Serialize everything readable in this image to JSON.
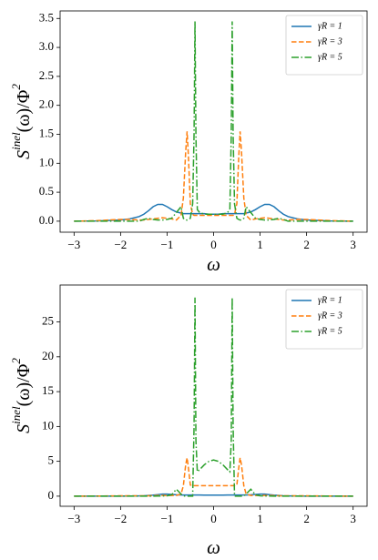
{
  "chart_data": [
    {
      "type": "line",
      "xlabel": "ω",
      "ylabel": [
        "S",
        "inel",
        "(ω)/Φ",
        "2"
      ],
      "xlim": [
        -3.3,
        3.3
      ],
      "ylim": [
        -0.19,
        3.63
      ],
      "xticks": [
        {
          "value": -3,
          "label": "−3"
        },
        {
          "value": -2,
          "label": "−2"
        },
        {
          "value": -1,
          "label": "−1"
        },
        0,
        1,
        2,
        3
      ],
      "yticks": [
        {
          "value": 0,
          "label": "0.0"
        },
        {
          "value": 0.5,
          "label": "0.5"
        },
        {
          "value": 1,
          "label": "1.0"
        },
        {
          "value": 1.5,
          "label": "1.5"
        },
        {
          "value": 2,
          "label": "2.0"
        },
        {
          "value": 2.5,
          "label": "2.5"
        },
        {
          "value": 3,
          "label": "3.0"
        },
        {
          "value": 3.5,
          "label": "3.5"
        }
      ],
      "legend": "upper right",
      "x": [
        -3,
        -2.5,
        -2,
        -1.8,
        -1.6,
        -1.5,
        -1.4,
        -1.3,
        -1.2,
        -1.1,
        -1,
        -0.9,
        -0.8,
        -0.7,
        -0.65,
        -0.6,
        -0.57,
        -0.54,
        -0.5,
        -0.45,
        -0.42,
        -0.4,
        -0.38,
        -0.35,
        -0.3,
        -0.2,
        -0.1,
        0,
        0.1,
        0.2,
        0.3,
        0.35,
        0.38,
        0.4,
        0.42,
        0.45,
        0.5,
        0.54,
        0.57,
        0.6,
        0.65,
        0.7,
        0.8,
        0.9,
        1,
        1.1,
        1.2,
        1.3,
        1.4,
        1.5,
        1.6,
        1.8,
        2,
        2.5,
        3
      ],
      "series": [
        {
          "name": "γR = 1",
          "color": "#1f77b4",
          "linestyle": "solid",
          "values": [
            0,
            0.005,
            0.02,
            0.04,
            0.08,
            0.12,
            0.18,
            0.25,
            0.29,
            0.29,
            0.25,
            0.2,
            0.16,
            0.14,
            0.13,
            0.13,
            0.13,
            0.13,
            0.13,
            0.13,
            0.13,
            0.13,
            0.13,
            0.13,
            0.13,
            0.13,
            0.12,
            0.12,
            0.12,
            0.13,
            0.13,
            0.13,
            0.13,
            0.13,
            0.13,
            0.13,
            0.13,
            0.13,
            0.13,
            0.13,
            0.13,
            0.14,
            0.16,
            0.2,
            0.25,
            0.29,
            0.29,
            0.25,
            0.18,
            0.12,
            0.08,
            0.04,
            0.02,
            0.005,
            0
          ]
        },
        {
          "name": "γR = 3",
          "color": "#ff7f0e",
          "linestyle": "dashed",
          "values": [
            0,
            0.01,
            0.03,
            0.03,
            0.02,
            0.02,
            0.03,
            0.04,
            0.05,
            0.06,
            0.05,
            0.04,
            0.02,
            0.1,
            0.4,
            1.2,
            1.55,
            1.1,
            0.3,
            0.12,
            0.1,
            0.1,
            0.1,
            0.1,
            0.1,
            0.1,
            0.1,
            0.1,
            0.1,
            0.1,
            0.1,
            0.1,
            0.1,
            0.1,
            0.1,
            0.12,
            0.3,
            1.1,
            1.55,
            1.2,
            0.4,
            0.1,
            0.02,
            0.04,
            0.05,
            0.06,
            0.05,
            0.04,
            0.03,
            0.02,
            0.02,
            0.03,
            0.03,
            0.01,
            0
          ]
        },
        {
          "name": "γR = 5",
          "color": "#2ca02c",
          "linestyle": "dashdot",
          "values": [
            0,
            0,
            0,
            0,
            0,
            0.03,
            0.05,
            0.03,
            0.02,
            0.02,
            0.03,
            0.05,
            0.15,
            0.25,
            0.05,
            0.02,
            0.02,
            0.03,
            0.05,
            0.3,
            1.5,
            3.45,
            1.5,
            0.2,
            0.15,
            0.12,
            0.12,
            0.12,
            0.12,
            0.12,
            0.15,
            0.2,
            1.5,
            3.45,
            1.5,
            0.3,
            0.05,
            0.03,
            0.02,
            0.02,
            0.05,
            0.25,
            0.15,
            0.05,
            0.03,
            0.02,
            0.02,
            0.03,
            0.05,
            0.03,
            0,
            0,
            0,
            0,
            0
          ]
        }
      ]
    },
    {
      "type": "line",
      "xlabel": "ω",
      "ylabel": [
        "S",
        "inel",
        "(ω)/Φ",
        "2"
      ],
      "xlim": [
        -3.3,
        3.3
      ],
      "ylim": [
        -1.45,
        30.3
      ],
      "xticks": [
        {
          "value": -3,
          "label": "−3"
        },
        {
          "value": -2,
          "label": "−2"
        },
        {
          "value": -1,
          "label": "−1"
        },
        0,
        1,
        2,
        3
      ],
      "yticks": [
        0,
        5,
        10,
        15,
        20,
        25
      ],
      "legend": "upper right",
      "x": [
        -3,
        -2.5,
        -2,
        -1.8,
        -1.6,
        -1.5,
        -1.4,
        -1.3,
        -1.2,
        -1.1,
        -1,
        -0.9,
        -0.8,
        -0.7,
        -0.65,
        -0.6,
        -0.57,
        -0.54,
        -0.5,
        -0.45,
        -0.42,
        -0.4,
        -0.38,
        -0.35,
        -0.3,
        -0.2,
        -0.1,
        0,
        0.1,
        0.2,
        0.3,
        0.35,
        0.38,
        0.4,
        0.42,
        0.45,
        0.5,
        0.54,
        0.57,
        0.6,
        0.65,
        0.7,
        0.8,
        0.9,
        1,
        1.1,
        1.2,
        1.3,
        1.4,
        1.5,
        1.6,
        1.8,
        2,
        2.5,
        3
      ],
      "series": [
        {
          "name": "γR = 1",
          "color": "#1f77b4",
          "linestyle": "solid",
          "values": [
            0,
            0,
            0.01,
            0.02,
            0.04,
            0.06,
            0.1,
            0.15,
            0.22,
            0.3,
            0.3,
            0.25,
            0.2,
            0.17,
            0.16,
            0.16,
            0.16,
            0.16,
            0.16,
            0.16,
            0.16,
            0.16,
            0.16,
            0.16,
            0.16,
            0.15,
            0.15,
            0.15,
            0.15,
            0.15,
            0.16,
            0.16,
            0.16,
            0.16,
            0.16,
            0.16,
            0.16,
            0.16,
            0.16,
            0.16,
            0.16,
            0.17,
            0.2,
            0.25,
            0.3,
            0.3,
            0.22,
            0.15,
            0.1,
            0.06,
            0.04,
            0.02,
            0.01,
            0,
            0
          ]
        },
        {
          "name": "γR = 3",
          "color": "#ff7f0e",
          "linestyle": "dashed",
          "values": [
            0,
            0.02,
            0.05,
            0.05,
            0.05,
            0.05,
            0.06,
            0.08,
            0.1,
            0.1,
            0.1,
            0.1,
            0.1,
            0.3,
            1.5,
            4.5,
            5.5,
            4,
            1.6,
            1.5,
            1.5,
            1.5,
            1.5,
            1.5,
            1.5,
            1.5,
            1.5,
            1.5,
            1.5,
            1.5,
            1.5,
            1.5,
            1.5,
            1.5,
            1.5,
            1.5,
            1.6,
            4,
            5.5,
            4.5,
            1.5,
            0.3,
            0.1,
            0.1,
            0.1,
            0.1,
            0.1,
            0.08,
            0.06,
            0.05,
            0.05,
            0.05,
            0.05,
            0.02,
            0
          ]
        },
        {
          "name": "γR = 5",
          "color": "#2ca02c",
          "linestyle": "dashdot",
          "values": [
            0,
            0,
            0,
            0,
            0,
            0,
            0,
            0,
            0.02,
            0.03,
            0.05,
            0.2,
            1,
            0.3,
            0.05,
            0,
            0,
            0,
            0,
            0,
            10,
            28.5,
            8,
            3.5,
            3.8,
            4.5,
            5,
            5.2,
            5,
            4.5,
            3.8,
            3.5,
            8,
            28.5,
            10,
            0,
            0,
            0,
            0,
            0,
            0.05,
            0.3,
            1,
            0.2,
            0.05,
            0.03,
            0.02,
            0,
            0,
            0,
            0,
            0,
            0,
            0,
            0
          ]
        }
      ]
    }
  ]
}
